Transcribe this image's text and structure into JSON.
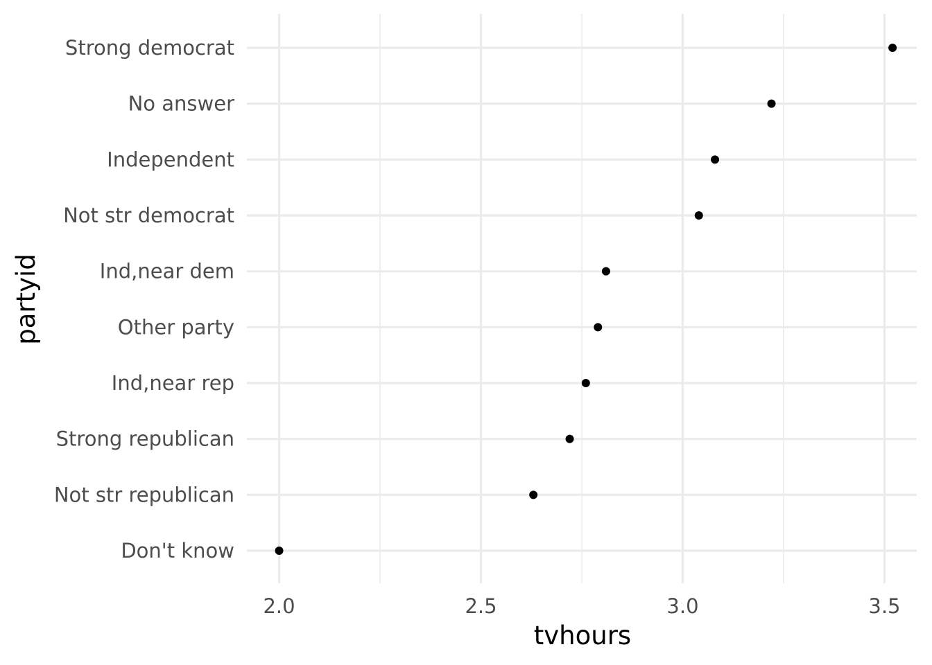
{
  "chart_data": {
    "type": "scatter",
    "title": "",
    "xlabel": "tvhours",
    "ylabel": "partyid",
    "xlim": [
      1.92,
      3.58
    ],
    "x_ticks": [
      2.0,
      2.5,
      3.0,
      3.5
    ],
    "x_tick_labels": [
      "2.0",
      "2.5",
      "3.0",
      "3.5"
    ],
    "x_minor_ticks": [
      2.25,
      2.75,
      3.25
    ],
    "grid": true,
    "legend": "none",
    "point_color": "#000000",
    "categories": [
      "Don't know",
      "Not str republican",
      "Strong republican",
      "Ind,near rep",
      "Other party",
      "Ind,near dem",
      "Not str democrat",
      "Independent",
      "No answer",
      "Strong democrat"
    ],
    "values": [
      2.0,
      2.63,
      2.72,
      2.76,
      2.79,
      2.81,
      3.04,
      3.08,
      3.22,
      3.52
    ]
  }
}
